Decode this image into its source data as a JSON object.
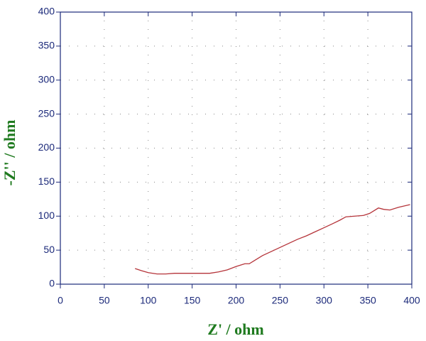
{
  "chart_data": {
    "type": "line",
    "xlabel": "Z' / ohm",
    "ylabel": "-Z'' / ohm",
    "series": [
      {
        "color": "#b5343a",
        "x": [
          85,
          92,
          100,
          110,
          120,
          130,
          150,
          170,
          180,
          190,
          200,
          210,
          215,
          220,
          230,
          240,
          250,
          260,
          270,
          280,
          290,
          300,
          310,
          318,
          325,
          335,
          345,
          352,
          362,
          368,
          375,
          385,
          395,
          398
        ],
        "values": [
          23,
          20,
          17,
          15,
          15,
          16,
          16,
          16,
          18,
          21,
          26,
          30,
          30,
          34,
          42,
          48,
          54,
          60,
          66,
          71,
          77,
          83,
          89,
          94,
          99,
          100,
          101,
          104,
          112,
          110,
          109,
          113,
          116,
          117
        ]
      }
    ],
    "xlim": [
      0,
      400
    ],
    "xticks": [
      0,
      50,
      100,
      150,
      200,
      250,
      300,
      350,
      400
    ],
    "ylim": [
      0,
      400
    ],
    "yticks": [
      0,
      50,
      100,
      150,
      200,
      250,
      300,
      350,
      400
    ],
    "grid": true
  }
}
